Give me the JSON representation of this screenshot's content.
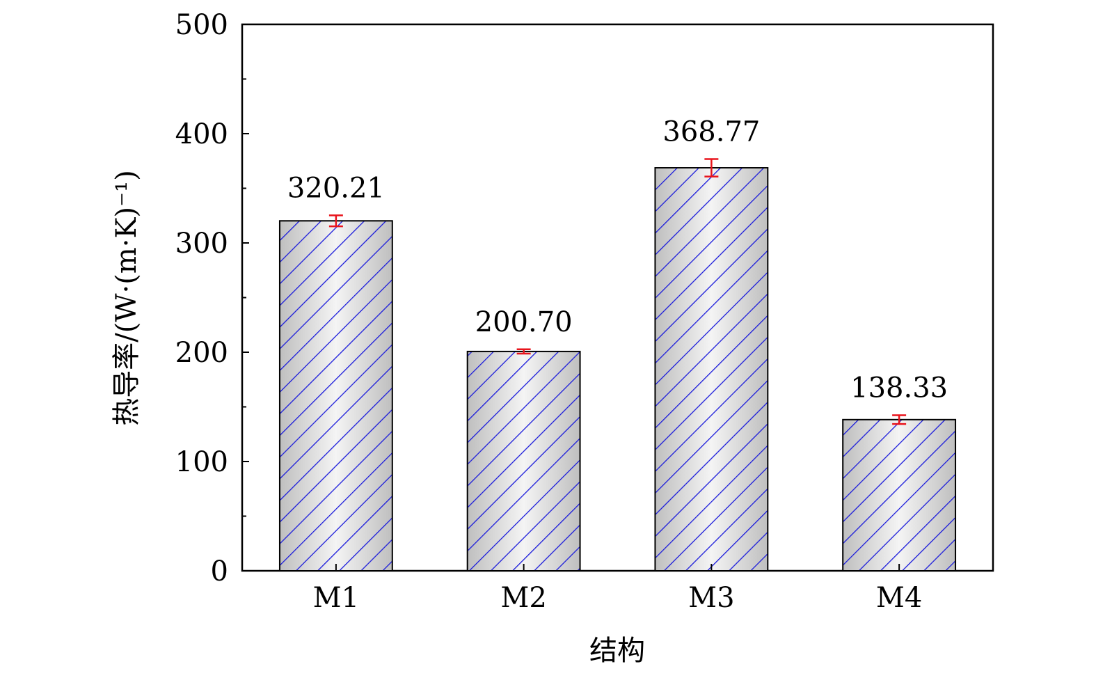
{
  "chart_data": {
    "type": "bar",
    "categories": [
      "M1",
      "M2",
      "M3",
      "M4"
    ],
    "values": [
      320.21,
      200.7,
      368.77,
      138.33
    ],
    "data_labels": [
      "320.21",
      "200.70",
      "368.77",
      "138.33"
    ],
    "errors": [
      5,
      2,
      8,
      4
    ],
    "xlabel": "结构",
    "ylabel": "热导率/(W·(m·K)⁻¹)",
    "ylim": [
      0,
      500
    ],
    "yticks": [
      0,
      100,
      200,
      300,
      400,
      500
    ],
    "grid": false,
    "colors": {
      "bar_fill": "#d9d9d9",
      "hatch": "#1a1adb",
      "error_bar": "#e8141c",
      "axis": "#000000"
    }
  }
}
